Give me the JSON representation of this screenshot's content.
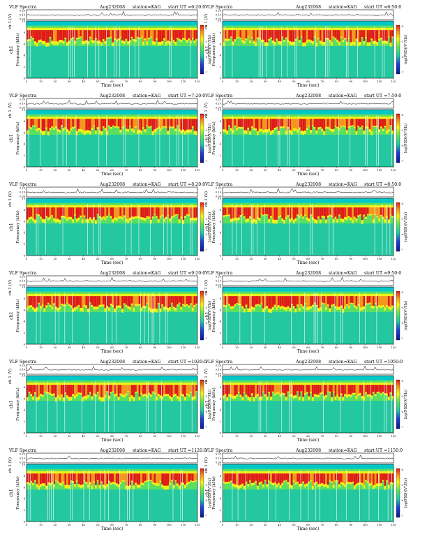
{
  "colors": {
    "band_top": "#00c8c8",
    "low": "#1f3fd6",
    "mid": "#23c7a0",
    "green": "#5ee05e",
    "yellow": "#f2f21a",
    "orange": "#f5941d",
    "red": "#e01a1a",
    "trace": "#000000"
  },
  "colorbar_label": "log(PSD)(V²/Hz)",
  "axis": {
    "time_label": "Time (sec)",
    "freq_label": "Frequency (kHz)",
    "amp_label": "ch 1 (V)",
    "ch_label": "ch1",
    "time_ticks": [
      "0",
      "10",
      "20",
      "30",
      "40",
      "50",
      "60",
      "70",
      "80",
      "90",
      "100",
      "110",
      "120"
    ],
    "freq_ticks": [
      "0",
      "2",
      "4",
      "6",
      "8",
      "10"
    ],
    "amp_ticks": [
      "0.00",
      "0.10",
      "0.20"
    ],
    "colorbar_ticks": [
      "-4",
      "-5",
      "-6",
      "-7"
    ]
  },
  "panels": [
    {
      "title": "VLF Spectra",
      "date": "Aug232008",
      "station": "station=KAG",
      "start": "start  UT =6:20:0"
    },
    {
      "title": "VLF Spectra",
      "date": "Aug232008",
      "station": "station=KAG",
      "start": "start  UT =6:50:0"
    },
    {
      "title": "VLF Spectra",
      "date": "Aug232008",
      "station": "station=KAG",
      "start": "start  UT =7:20:0"
    },
    {
      "title": "VLF Spectra",
      "date": "Aug232008",
      "station": "station=KAG",
      "start": "start  UT =7:50:0"
    },
    {
      "title": "VLF Spectra",
      "date": "Aug232008",
      "station": "station=KAG",
      "start": "start  UT =8:20:0"
    },
    {
      "title": "VLF Spectra",
      "date": "Aug232008",
      "station": "station=KAG",
      "start": "start  UT =8:50:0"
    },
    {
      "title": "VLF Spectra",
      "date": "Aug232008",
      "station": "station=KAG",
      "start": "start  UT =9:20:0"
    },
    {
      "title": "VLF Spectra",
      "date": "Aug232008",
      "station": "station=KAG",
      "start": "start  UT =9:50:0"
    },
    {
      "title": "VLF Spectra",
      "date": "Aug232008",
      "station": "station=KAG",
      "start": "start  UT =1020:0"
    },
    {
      "title": "VLF Spectra",
      "date": "Aug232008",
      "station": "station=KAG",
      "start": "start  UT =1050:0"
    },
    {
      "title": "VLF Spectra",
      "date": "Aug232008",
      "station": "station=KAG",
      "start": "start  UT =1120:0"
    },
    {
      "title": "VLF Spectra",
      "date": "Aug232008",
      "station": "station=KAG",
      "start": "start  UT =1150:0"
    }
  ],
  "chart_data": {
    "type": "heatmap",
    "x_range": [
      0,
      120
    ],
    "y_range_khz": [
      0,
      10
    ],
    "amp_range_v": [
      0.0,
      0.2
    ],
    "colorbar_range": [
      -7,
      -4
    ],
    "energy_band_khz": [
      5,
      9
    ],
    "panel_count": 12,
    "layout": "6 rows x 2 columns"
  }
}
